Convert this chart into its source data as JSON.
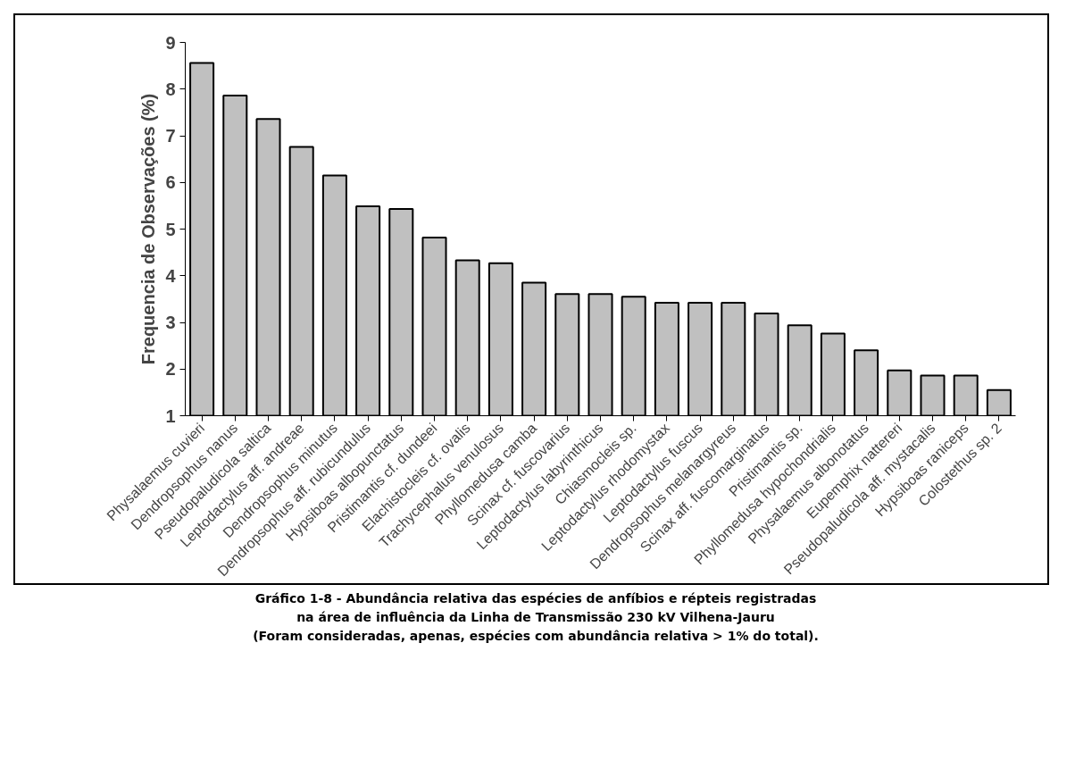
{
  "chart_data": {
    "type": "bar",
    "ylabel": "Frequencia de Observações (%)",
    "categories": [
      "Physalaemus cuvieri",
      "Dendropsophus nanus",
      "Pseudopaludicola saltica",
      "Leptodactylus aff. andreae",
      "Dendropsophus minutus",
      "Dendropsophus aff. rubicundulus",
      "Hypsiboas albopunctatus",
      "Pristimantis cf. dundeei",
      "Elachistocleis cf. ovalis",
      "Trachycephalus venulosus",
      "Phyllomedusa camba",
      "Scinax cf. fuscovarius",
      "Leptodactylus labyrinthicus",
      "Chiasmocleis sp.",
      "Leptodactylus rhodomystax",
      "Leptodactylus fuscus",
      "Dendropsophus melanargyreus",
      "Scinax aff. fuscomarginatus",
      "Pristimantis sp.",
      "Phyllomedusa hypochondrialis",
      "Physalaemus albonotatus",
      "Eupemphix nattereri",
      "Pseudopaludicola aff. mystacalis",
      "Hypsiboas raniceps",
      "Colostethus sp. 2"
    ],
    "values": [
      8.56,
      7.86,
      7.36,
      6.76,
      6.15,
      5.49,
      5.43,
      4.82,
      4.33,
      4.27,
      3.85,
      3.61,
      3.61,
      3.55,
      3.42,
      3.42,
      3.42,
      3.19,
      2.94,
      2.76,
      2.4,
      1.97,
      1.86,
      1.86,
      1.55
    ],
    "color": "#c0c0c0",
    "ylim": [
      1,
      9
    ],
    "yticks": [
      1,
      2,
      3,
      4,
      5,
      6,
      7,
      8,
      9
    ],
    "grid": false,
    "annotations": [
      "Gráfico 1-8 - Abundância relativa das espécies de anfíbios e répteis registradas",
      "na área de influência da Linha de Transmissão 230 kV Vilhena-Jauru",
      "(Foram consideradas, apenas, espécies com abundância relativa > 1% do total)."
    ]
  }
}
